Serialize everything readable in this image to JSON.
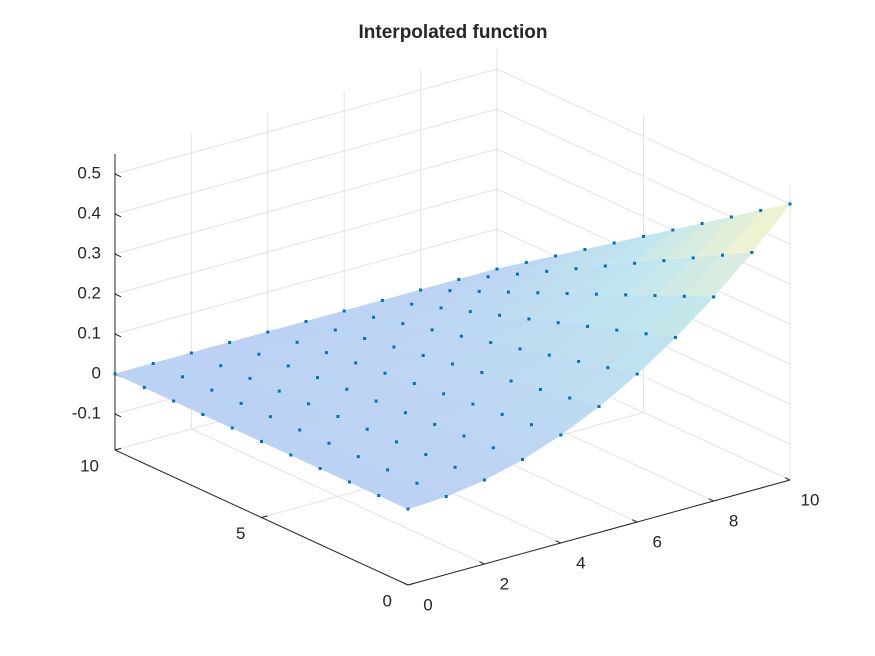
{
  "chart_data": {
    "type": "surface",
    "title": "Interpolated function",
    "x": [
      0,
      1,
      2,
      3,
      4,
      5,
      6,
      7,
      8,
      9,
      10
    ],
    "y": [
      0,
      1,
      2,
      3,
      4,
      5,
      6,
      7,
      8,
      9,
      10
    ],
    "z": [
      [
        0,
        0.005,
        0.02,
        0.045,
        0.08,
        0.125,
        0.18,
        0.245,
        0.32,
        0.405,
        0.5
      ],
      [
        0,
        0.0045,
        0.018,
        0.0405,
        0.072,
        0.1125,
        0.162,
        0.2205,
        0.288,
        0.3645,
        0.45
      ],
      [
        0,
        0.004,
        0.016,
        0.036,
        0.064,
        0.1,
        0.144,
        0.196,
        0.256,
        0.324,
        0.4
      ],
      [
        0,
        0.0035,
        0.014,
        0.0315,
        0.056,
        0.0875,
        0.126,
        0.1715,
        0.224,
        0.2835,
        0.35
      ],
      [
        0,
        0.003,
        0.012,
        0.027,
        0.048,
        0.075,
        0.108,
        0.147,
        0.192,
        0.243,
        0.3
      ],
      [
        0,
        0.0025,
        0.01,
        0.0225,
        0.04,
        0.0625,
        0.09,
        0.1225,
        0.16,
        0.2025,
        0.25
      ],
      [
        0,
        0.002,
        0.008,
        0.018,
        0.032,
        0.05,
        0.072,
        0.098,
        0.128,
        0.162,
        0.2
      ],
      [
        0,
        0.0015,
        0.006,
        0.0135,
        0.024,
        0.0375,
        0.054,
        0.0735,
        0.096,
        0.1215,
        0.15
      ],
      [
        0,
        0.001,
        0.004,
        0.009,
        0.016,
        0.025,
        0.036,
        0.049,
        0.064,
        0.081,
        0.1
      ],
      [
        0,
        0.0005,
        0.002,
        0.0045,
        0.008,
        0.0125,
        0.018,
        0.0245,
        0.032,
        0.0405,
        0.05
      ],
      [
        0,
        0,
        0,
        0,
        0,
        0,
        0,
        0,
        0,
        0,
        0
      ]
    ],
    "xlim": [
      0,
      10
    ],
    "ylim": [
      0,
      10
    ],
    "zlim": [
      -0.19,
      0.55
    ],
    "xticks": [
      0,
      2,
      4,
      6,
      8,
      10
    ],
    "yticks": [
      0,
      5,
      10
    ],
    "zticks": [
      -0.1,
      0,
      0.1,
      0.2,
      0.3,
      0.4,
      0.5
    ],
    "grid": true,
    "marker_color": "#0072bd",
    "colormap": [
      "#bcd2f4",
      "#c1e6ef",
      "#fdf6c6"
    ]
  }
}
